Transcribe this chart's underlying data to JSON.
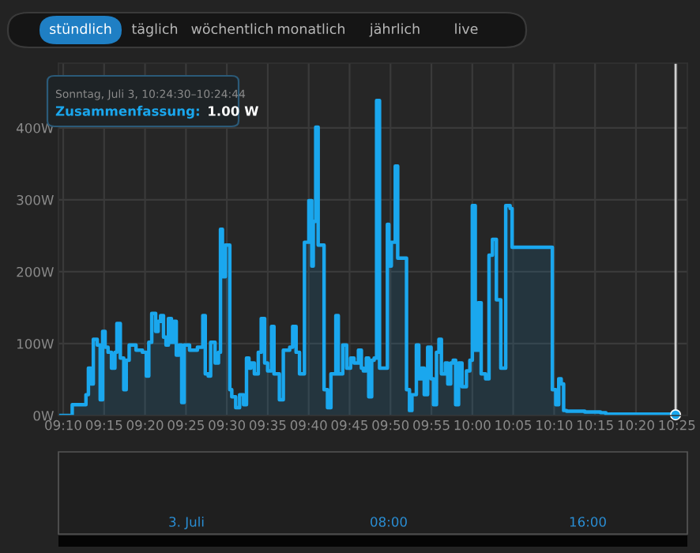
{
  "chart_data": {
    "type": "step",
    "color": "#1aa7ee",
    "x": [
      9.158,
      9.185,
      9.213,
      9.218,
      9.223,
      9.228,
      9.236,
      9.242,
      9.247,
      9.252,
      9.258,
      9.265,
      9.272,
      9.276,
      9.283,
      9.29,
      9.295,
      9.301,
      9.315,
      9.328,
      9.336,
      9.341,
      9.347,
      9.355,
      9.36,
      9.365,
      9.371,
      9.376,
      9.381,
      9.387,
      9.392,
      9.397,
      9.403,
      9.408,
      9.413,
      9.424,
      9.44,
      9.451,
      9.456,
      9.462,
      9.467,
      9.476,
      9.483,
      9.487,
      9.491,
      9.497,
      9.506,
      9.51,
      9.518,
      9.526,
      9.534,
      9.54,
      9.545,
      9.549,
      9.556,
      9.564,
      9.57,
      9.577,
      9.583,
      9.591,
      9.596,
      9.607,
      9.615,
      9.628,
      9.634,
      9.641,
      9.648,
      9.658,
      9.667,
      9.673,
      9.676,
      9.681,
      9.686,
      9.698,
      9.705,
      9.712,
      9.722,
      9.727,
      9.736,
      9.744,
      9.752,
      9.759,
      9.768,
      9.774,
      9.778,
      9.784,
      9.789,
      9.795,
      9.8,
      9.805,
      9.811,
      9.827,
      9.83,
      9.835,
      9.843,
      9.848,
      9.866,
      9.872,
      9.877,
      9.886,
      9.891,
      9.896,
      9.902,
      9.909,
      9.916,
      9.921,
      9.927,
      9.932,
      9.937,
      9.945,
      9.95,
      9.956,
      9.961,
      9.966,
      9.972,
      9.979,
      9.988,
      9.995,
      10.0,
      10.006,
      10.012,
      10.018,
      10.027,
      10.034,
      10.041,
      10.049,
      10.058,
      10.068,
      10.077,
      10.081,
      10.163,
      10.17,
      10.176,
      10.181,
      10.186,
      10.192,
      10.229,
      10.261,
      10.272,
      10.414
    ],
    "values": [
      0,
      15,
      29,
      66,
      44,
      106,
      98,
      22,
      117,
      95,
      88,
      66,
      88,
      128,
      80,
      36,
      77,
      98,
      91,
      88,
      55,
      102,
      142,
      117,
      131,
      139,
      109,
      98,
      135,
      102,
      131,
      84,
      98,
      18,
      98,
      91,
      95,
      139,
      58,
      55,
      102,
      73,
      88,
      259,
      193,
      237,
      36,
      26,
      11,
      29,
      15,
      80,
      66,
      73,
      58,
      88,
      135,
      73,
      62,
      124,
      58,
      22,
      91,
      95,
      124,
      88,
      58,
      241,
      299,
      208,
      270,
      401,
      237,
      36,
      11,
      58,
      139,
      58,
      98,
      66,
      80,
      73,
      91,
      66,
      62,
      80,
      26,
      77,
      80,
      438,
      66,
      266,
      208,
      241,
      347,
      219,
      36,
      7,
      29,
      98,
      51,
      66,
      29,
      95,
      51,
      15,
      88,
      106,
      58,
      73,
      44,
      73,
      77,
      15,
      73,
      40,
      62,
      77,
      292,
      91,
      157,
      58,
      51,
      223,
      245,
      161,
      66,
      292,
      288,
      234,
      36,
      15,
      51,
      44,
      7,
      6,
      5,
      4,
      2,
      1
    ],
    "xlim": [
      9.157,
      10.438
    ],
    "xticks": [
      {
        "value": 9.1667,
        "label": "09:10"
      },
      {
        "value": 9.25,
        "label": "09:15"
      },
      {
        "value": 9.3333,
        "label": "09:20"
      },
      {
        "value": 9.4167,
        "label": "09:25"
      },
      {
        "value": 9.5,
        "label": "09:30"
      },
      {
        "value": 9.5833,
        "label": "09:35"
      },
      {
        "value": 9.6667,
        "label": "09:40"
      },
      {
        "value": 9.75,
        "label": "09:45"
      },
      {
        "value": 9.8333,
        "label": "09:50"
      },
      {
        "value": 9.9167,
        "label": "09:55"
      },
      {
        "value": 10.0,
        "label": "10:00"
      },
      {
        "value": 10.0833,
        "label": "10:05"
      },
      {
        "value": 10.1667,
        "label": "10:10"
      },
      {
        "value": 10.25,
        "label": "10:15"
      },
      {
        "value": 10.3333,
        "label": "10:20"
      },
      {
        "value": 10.4167,
        "label": "10:25"
      }
    ],
    "ylim": [
      0,
      490
    ],
    "yticks": [
      {
        "value": 0,
        "label": "0W"
      },
      {
        "value": 100,
        "label": "100W"
      },
      {
        "value": 200,
        "label": "200W"
      },
      {
        "value": 300,
        "label": "300W"
      },
      {
        "value": 400,
        "label": "400W"
      }
    ],
    "grid": true,
    "ref_lines": [
      {
        "axis": "x",
        "value": 10.414,
        "color": "#d0d0d0"
      }
    ],
    "annotations": [
      "stündlich",
      "täglich",
      "wöchentlich",
      "monatlich",
      "jährlich",
      "live",
      "Sonntag, Juli 3, 10:24:30–10:24:44",
      "Zusammenfassung:",
      "1.00 W",
      "3. Juli",
      "08:00",
      "16:00"
    ]
  }
}
